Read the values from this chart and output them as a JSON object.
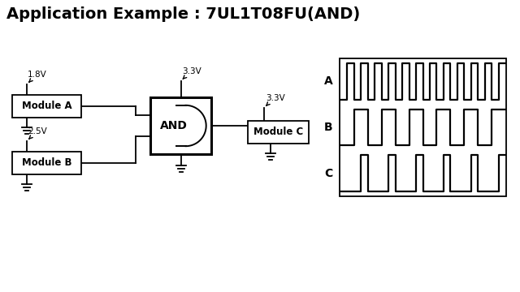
{
  "title": "Application Example : 7UL1T08FU(AND)",
  "title_fontsize": 14,
  "title_fontweight": "bold",
  "bg_color": "#ffffff",
  "line_color": "#000000",
  "module_a_label": "Module A",
  "module_b_label": "Module B",
  "module_c_label": "Module C",
  "and_label": "AND",
  "v18": "1.8V",
  "v25": "2.5V",
  "v33_top": "3.3V",
  "v33_right": "3.3V",
  "grid_color": "#c8c8c8",
  "signal_lw": 1.6,
  "A_label": "A",
  "B_label": "B",
  "C_label": "C",
  "sA": [
    0,
    1,
    0,
    1,
    0,
    1,
    0,
    1,
    0,
    1,
    0,
    1,
    0,
    1,
    0,
    1,
    0,
    1,
    0,
    1,
    0,
    1,
    0,
    1
  ],
  "sB": [
    0,
    0,
    1,
    1,
    0,
    0,
    1,
    1,
    0,
    0,
    1,
    1,
    0,
    0,
    1,
    1,
    0,
    0,
    1,
    1,
    0,
    0,
    1,
    1
  ],
  "sC": [
    0,
    0,
    0,
    1,
    0,
    0,
    0,
    1,
    0,
    0,
    0,
    1,
    0,
    0,
    0,
    1,
    0,
    0,
    0,
    1,
    0,
    0,
    0,
    1
  ]
}
